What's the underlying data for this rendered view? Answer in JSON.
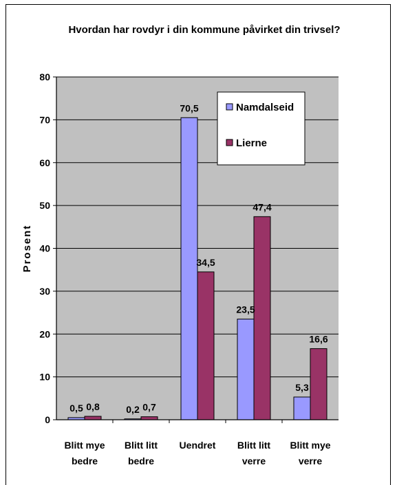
{
  "chart_data": {
    "type": "bar",
    "title": "Hvordan har rovdyr i din kommune påvirket din trivsel?",
    "ylabel": "Prosent",
    "xlabel": "",
    "ylim": [
      0,
      80
    ],
    "yticks": [
      0,
      10,
      20,
      30,
      40,
      50,
      60,
      70,
      80
    ],
    "grid": true,
    "legend_position": "top-right",
    "categories": [
      [
        "Blitt mye",
        "bedre"
      ],
      [
        "Blitt litt",
        "bedre"
      ],
      [
        "Uendret"
      ],
      [
        "Blitt litt",
        "verre"
      ],
      [
        "Blitt mye",
        "verre"
      ]
    ],
    "series": [
      {
        "name": "Namdalseid",
        "color": "#9999ff",
        "values": [
          0.5,
          0.2,
          70.5,
          23.5,
          5.3
        ],
        "labels": [
          "0,5",
          "0,2",
          "70,5",
          "23,5",
          "5,3"
        ]
      },
      {
        "name": "Lierne",
        "color": "#993366",
        "values": [
          0.8,
          0.7,
          34.5,
          47.4,
          16.6
        ],
        "labels": [
          "0,8",
          "0,7",
          "34,5",
          "47,4",
          "16,6"
        ]
      }
    ],
    "plot_background": "#c0c0c0"
  }
}
